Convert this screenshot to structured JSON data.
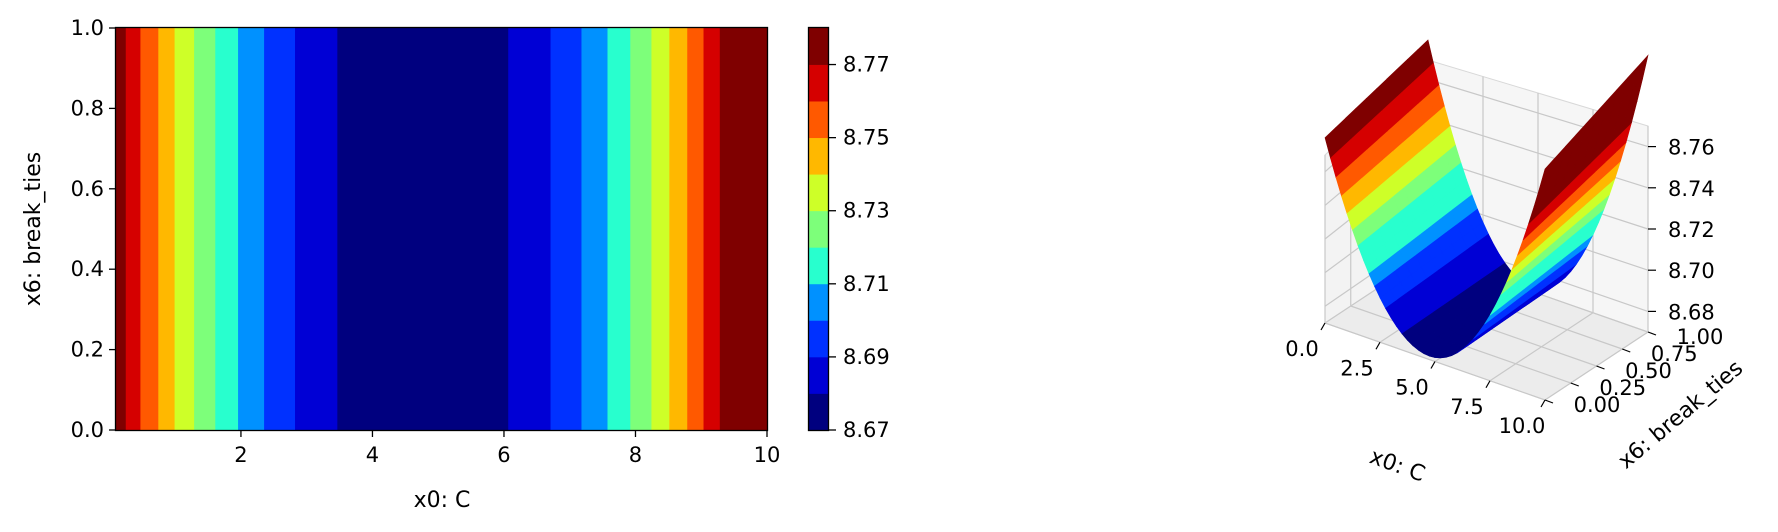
{
  "chart_data": [
    {
      "type": "heatmap",
      "subtype": "filled-contour",
      "colormap": "jet",
      "xlabel": "x0: C",
      "ylabel": "x6: break_ties",
      "xlim": [
        0.1,
        10
      ],
      "ylim": [
        0,
        1
      ],
      "x_ticks": [
        2,
        4,
        6,
        8,
        10
      ],
      "y_ticks": [
        0.0,
        0.2,
        0.4,
        0.6,
        0.8,
        1.0
      ],
      "x_tick_labels": [
        "2",
        "4",
        "6",
        "8",
        "10"
      ],
      "y_tick_labels": [
        "0.0",
        "0.2",
        "0.4",
        "0.6",
        "0.8",
        "1.0"
      ],
      "levels": [
        8.67,
        8.68,
        8.69,
        8.7,
        8.71,
        8.72,
        8.73,
        8.74,
        8.75,
        8.76,
        8.77,
        8.78
      ],
      "band_colors": [
        "#00007f",
        "#0000d5",
        "#0031ff",
        "#0091ff",
        "#28ffce",
        "#7dff7a",
        "#ceff28",
        "#ffb800",
        "#ff5900",
        "#d50000",
        "#7f0000"
      ],
      "function": {
        "form": "quadratic in x0, constant in x6",
        "minimum_x": 4.75,
        "minimum_value": 8.672,
        "curvature": 0.0048
      },
      "colorbar": {
        "tick_values": [
          8.67,
          8.69,
          8.71,
          8.73,
          8.75,
          8.77
        ],
        "tick_labels": [
          "8.67",
          "8.69",
          "8.71",
          "8.73",
          "8.75",
          "8.77"
        ]
      },
      "grid": false
    },
    {
      "type": "surface",
      "colormap": "jet",
      "xlabel": "x0: C",
      "ylabel": "x6: break_ties",
      "xlim": [
        0,
        10
      ],
      "ylim": [
        0,
        1
      ],
      "zlim": [
        8.67,
        8.77
      ],
      "x_tick_labels": [
        "0.0",
        "2.5",
        "5.0",
        "7.5",
        "10.0"
      ],
      "y_tick_labels": [
        "0.00",
        "0.25",
        "0.50",
        "0.75",
        "1.00"
      ],
      "z_tick_labels": [
        "8.68",
        "8.70",
        "8.72",
        "8.74",
        "8.76"
      ],
      "x_ticks": [
        0,
        2.5,
        5,
        7.5,
        10
      ],
      "y_ticks": [
        0,
        0.25,
        0.5,
        0.75,
        1
      ],
      "z_ticks": [
        8.68,
        8.7,
        8.72,
        8.74,
        8.76
      ],
      "grid": true
    }
  ]
}
